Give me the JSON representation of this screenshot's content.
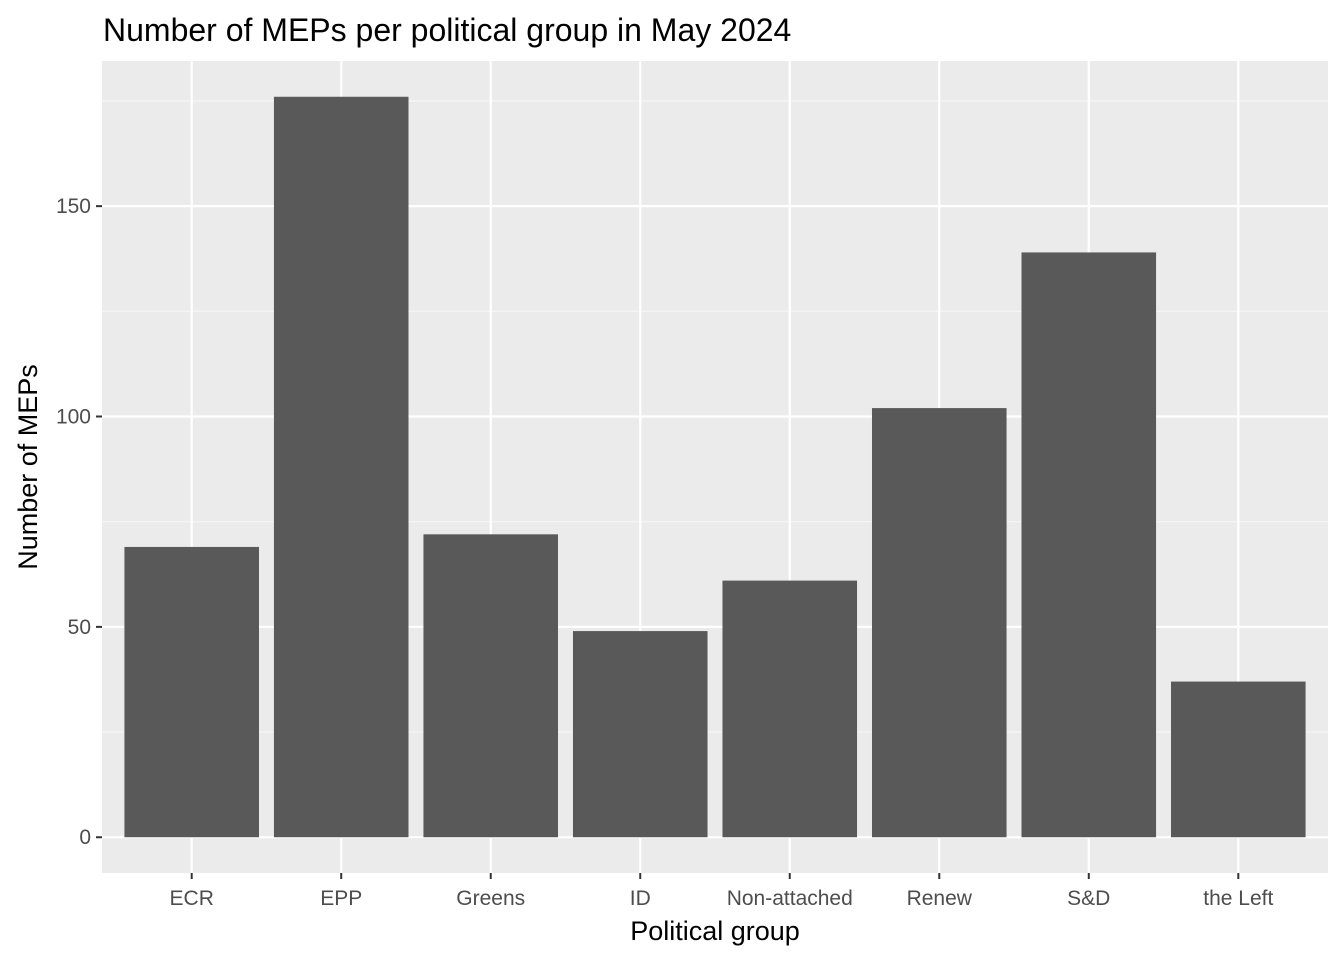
{
  "chart_data": {
    "type": "bar",
    "title": "Number of MEPs per political group in May 2024",
    "xlabel": "Political group",
    "ylabel": "Number of MEPs",
    "categories": [
      "ECR",
      "EPP",
      "Greens",
      "ID",
      "Non-attached",
      "Renew",
      "S&D",
      "the Left"
    ],
    "values": [
      69,
      176,
      72,
      49,
      61,
      102,
      139,
      37
    ],
    "ylim": [
      -8.5,
      184.5
    ],
    "yticks": [
      0,
      50,
      100,
      150
    ],
    "ytick_labels": [
      "0",
      "50",
      "100",
      "150"
    ],
    "grid": true,
    "legend": "none",
    "colors": {
      "bar": "#595959",
      "panel_background": "#ebebeb",
      "grid_major": "#ffffff",
      "grid_minor": "#f5f5f5",
      "tick_text": "#4d4d4d",
      "title_text": "#000000"
    }
  }
}
